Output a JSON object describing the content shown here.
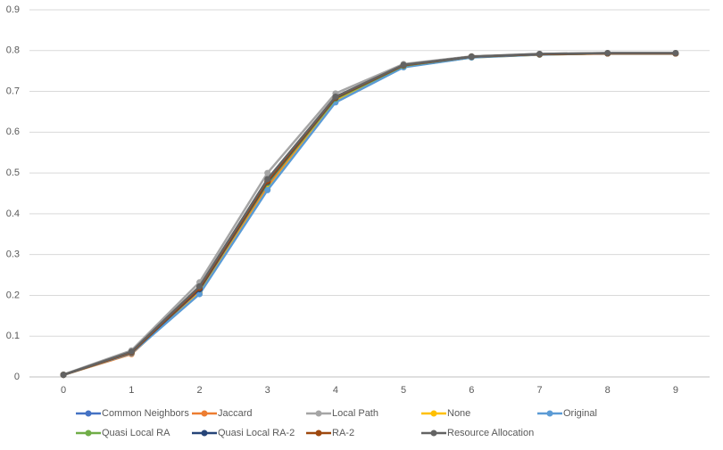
{
  "chart_data": {
    "type": "line",
    "categories": [
      "0",
      "1",
      "2",
      "3",
      "4",
      "5",
      "6",
      "7",
      "8",
      "9"
    ],
    "ylim": [
      0,
      0.9
    ],
    "yticks": [
      0,
      0.1,
      0.2,
      0.3,
      0.4,
      0.5,
      0.6,
      0.7,
      0.8,
      0.9
    ],
    "grid": true,
    "legend": "bottom",
    "series": [
      {
        "name": "Common Neighbors",
        "color": "#4472c4",
        "values": [
          0.005,
          0.058,
          0.21,
          0.47,
          0.68,
          0.762,
          0.784,
          0.791,
          0.793,
          0.793
        ]
      },
      {
        "name": "Jaccard",
        "color": "#ed7d31",
        "values": [
          0.005,
          0.056,
          0.21,
          0.465,
          0.678,
          0.762,
          0.784,
          0.791,
          0.793,
          0.793
        ]
      },
      {
        "name": "Local Path",
        "color": "#a5a5a5",
        "values": [
          0.006,
          0.065,
          0.232,
          0.5,
          0.695,
          0.767,
          0.786,
          0.792,
          0.794,
          0.794
        ]
      },
      {
        "name": "None",
        "color": "#ffc000",
        "values": [
          0.005,
          0.058,
          0.205,
          0.46,
          0.675,
          0.76,
          0.783,
          0.79,
          0.793,
          0.793
        ]
      },
      {
        "name": "Original",
        "color": "#5b9bd5",
        "values": [
          0.005,
          0.058,
          0.203,
          0.458,
          0.673,
          0.759,
          0.783,
          0.79,
          0.793,
          0.793
        ]
      },
      {
        "name": "Quasi Local RA",
        "color": "#70ad47",
        "values": [
          0.005,
          0.06,
          0.215,
          0.475,
          0.682,
          0.763,
          0.785,
          0.791,
          0.793,
          0.793
        ]
      },
      {
        "name": "Quasi Local RA-2",
        "color": "#264478",
        "values": [
          0.005,
          0.06,
          0.215,
          0.478,
          0.684,
          0.764,
          0.785,
          0.791,
          0.793,
          0.793
        ]
      },
      {
        "name": "RA-2",
        "color": "#9e480e",
        "values": [
          0.005,
          0.06,
          0.218,
          0.48,
          0.685,
          0.764,
          0.785,
          0.791,
          0.793,
          0.793
        ]
      },
      {
        "name": "Resource Allocation",
        "color": "#636363",
        "values": [
          0.005,
          0.062,
          0.222,
          0.485,
          0.687,
          0.765,
          0.785,
          0.792,
          0.794,
          0.794
        ]
      }
    ]
  }
}
